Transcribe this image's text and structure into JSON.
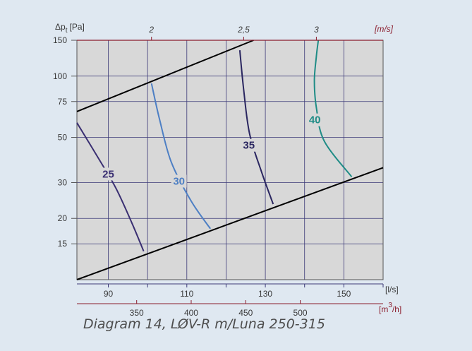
{
  "caption": "Diagram 14, LØV-R m/Luna 250-315",
  "chart_data": {
    "type": "line",
    "title": "",
    "y_axis": {
      "label": "Δp",
      "label_sub": "t",
      "unit": "[Pa]",
      "scale": "log",
      "range": [
        10,
        150
      ],
      "ticks": [
        15,
        20,
        30,
        50,
        75,
        100,
        150
      ],
      "tick_labels": [
        "15",
        "20",
        "30",
        "50",
        "75",
        "100",
        "150"
      ]
    },
    "x_axis": {
      "unit": "[l/s]",
      "range": [
        82,
        160
      ],
      "ticks": [
        90,
        110,
        130,
        150
      ],
      "tick_labels": [
        "90",
        "110",
        "130",
        "150"
      ],
      "grid_step": 10
    },
    "x_axis_secondary": {
      "unit": "[m3/h]",
      "ticks": [
        350,
        400,
        450,
        500
      ],
      "tick_labels": [
        "350",
        "400",
        "450",
        "500"
      ]
    },
    "x_axis_top": {
      "unit": "[m/s]",
      "ticks": [
        2,
        2.5,
        3
      ],
      "tick_labels": [
        "2",
        "2,5",
        "3"
      ],
      "positions_lps": [
        101,
        124.5,
        143
      ]
    },
    "grid": true,
    "boundary_lines": [
      {
        "name": "upper-limit",
        "color": "#000000",
        "points": [
          [
            82,
            67
          ],
          [
            127,
            150
          ]
        ]
      },
      {
        "name": "lower-limit",
        "color": "#000000",
        "points": [
          [
            82,
            10
          ],
          [
            160,
            35.5
          ]
        ]
      }
    ],
    "series": [
      {
        "name": "25",
        "color": "#3a2f72",
        "points": [
          [
            82,
            59
          ],
          [
            88,
            38
          ],
          [
            92,
            28
          ],
          [
            96,
            19
          ],
          [
            99,
            13.8
          ]
        ]
      },
      {
        "name": "30",
        "color": "#4d7fc4",
        "points": [
          [
            101,
            92
          ],
          [
            103,
            62
          ],
          [
            106,
            38
          ],
          [
            111,
            24.5
          ],
          [
            116,
            17.8
          ]
        ]
      },
      {
        "name": "35",
        "color": "#2a2660",
        "points": [
          [
            123.5,
            134
          ],
          [
            124.5,
            85
          ],
          [
            126,
            52
          ],
          [
            129,
            34
          ],
          [
            132,
            23.5
          ]
        ]
      },
      {
        "name": "40",
        "color": "#1f8c86",
        "points": [
          [
            143.5,
            150
          ],
          [
            143,
            125
          ],
          [
            142.5,
            95
          ],
          [
            143,
            70
          ],
          [
            145,
            48
          ],
          [
            152,
            32
          ]
        ]
      }
    ]
  }
}
